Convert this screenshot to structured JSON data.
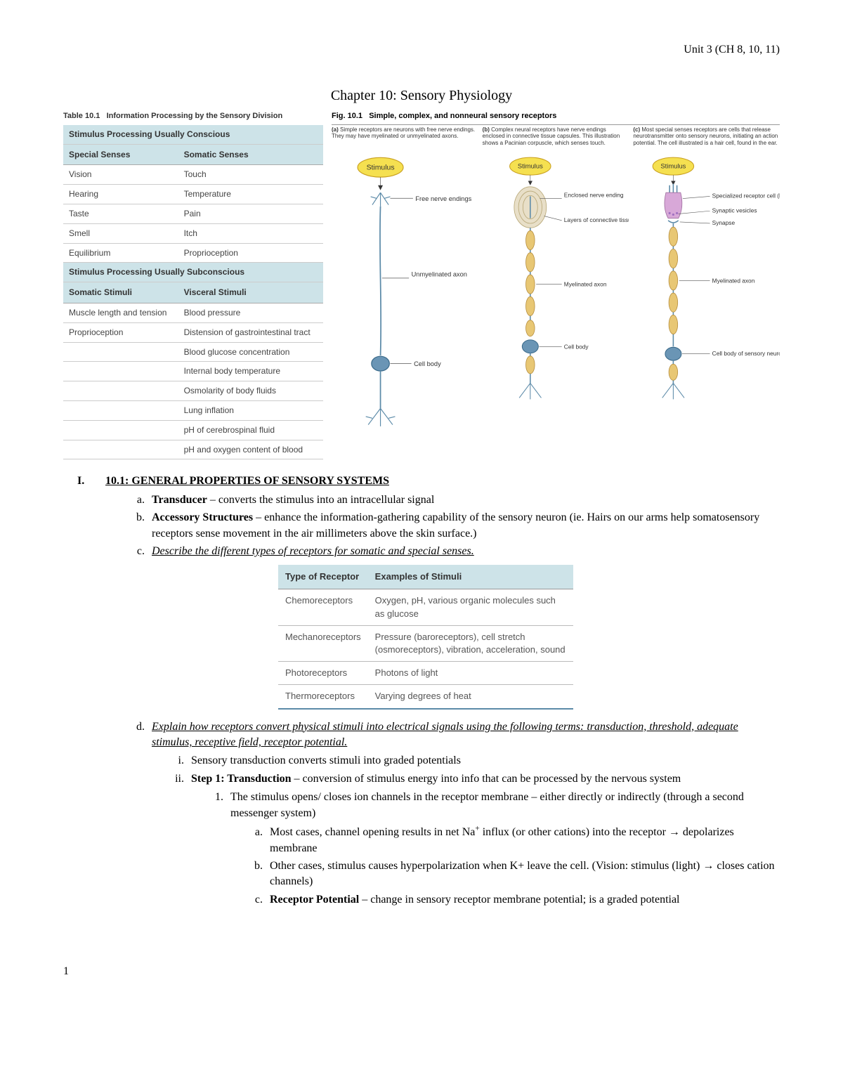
{
  "header": {
    "unit": "Unit 3 (CH 8, 10, 11)"
  },
  "chapter_title": "Chapter 10: Sensory Physiology",
  "table101": {
    "caption_num": "Table 10.1",
    "caption_text": "Information Processing by the Sensory Division",
    "section1_title": "Stimulus Processing Usually Conscious",
    "col1a": "Special Senses",
    "col1b": "Somatic Senses",
    "rows1": [
      [
        "Vision",
        "Touch"
      ],
      [
        "Hearing",
        "Temperature"
      ],
      [
        "Taste",
        "Pain"
      ],
      [
        "Smell",
        "Itch"
      ],
      [
        "Equilibrium",
        "Proprioception"
      ]
    ],
    "section2_title": "Stimulus Processing Usually Subconscious",
    "col2a": "Somatic Stimuli",
    "col2b": "Visceral Stimuli",
    "rows2": [
      [
        "Muscle length and tension",
        "Blood pressure"
      ],
      [
        "Proprioception",
        "Distension of gastrointestinal tract"
      ],
      [
        "",
        "Blood glucose concentration"
      ],
      [
        "",
        "Internal body temperature"
      ],
      [
        "",
        "Osmolarity of body fluids"
      ],
      [
        "",
        "Lung inflation"
      ],
      [
        "",
        "pH of cerebrospinal fluid"
      ],
      [
        "",
        "pH and oxygen content of blood"
      ]
    ]
  },
  "fig101": {
    "caption_num": "Fig. 10.1",
    "caption_text": "Simple, complex, and nonneural sensory receptors",
    "a_tag": "(a)",
    "a_desc": "Simple receptors are neurons with free nerve endings. They may have myelinated or unmyelinated axons.",
    "b_tag": "(b)",
    "b_desc": "Complex neural receptors have nerve endings enclosed in connective tissue capsules. This illustration shows a Pacinian corpuscle, which senses touch.",
    "c_tag": "(c)",
    "c_desc": "Most special senses receptors are cells that release neurotransmitter onto sensory neurons, initiating an action potential. The cell illustrated is a hair cell, found in the ear.",
    "labels": {
      "stimulus": "Stimulus",
      "free_nerve": "Free nerve endings",
      "unmyel": "Unmyelinated axon",
      "cellbody": "Cell body",
      "enclosed": "Enclosed nerve ending",
      "layers": "Layers of connective tissue",
      "myel": "Myelinated axon",
      "spec_cell": "Specialized receptor cell (hair cell)",
      "vesicles": "Synaptic vesicles",
      "synapse": "Synapse",
      "cellbody_sn": "Cell body of sensory neuron"
    }
  },
  "outline": {
    "I_num": "I.",
    "I_title": "10.1: GENERAL PROPERTIES OF SENSORY SYSTEMS",
    "a_lead": "Transducer",
    "a_rest": " – converts the stimulus into an intracellular signal",
    "b_lead": "Accessory Structures",
    "b_rest": " – enhance the information-gathering capability of the sensory neuron (ie. Hairs on our arms help somatosensory receptors sense movement in the air millimeters above the skin surface.)",
    "c_text": "Describe the different types of receptors for somatic and special senses.",
    "d_text": "Explain how receptors convert physical stimuli into electrical signals using the following terms: transduction, threshold, adequate stimulus, receptive field, receptor potential.",
    "d_i": "Sensory transduction converts stimuli into graded potentials",
    "d_ii_lead": "Step 1: Transduction",
    "d_ii_rest": " – conversion of stimulus energy into info that can be processed by the nervous system",
    "d_ii_1": "The stimulus opens/ closes ion channels in the receptor membrane – either directly or indirectly (through a second messenger system)",
    "d_ii_1a": "Most cases, channel opening results in net Na⁺ influx (or other cations) into the receptor → depolarizes membrane",
    "d_ii_1b": "Other cases, stimulus causes hyperpolarization when K+ leave the cell. (Vision: stimulus (light) → closes cation channels)",
    "d_ii_1c_lead": "Receptor Potential",
    "d_ii_1c_rest": " – change in sensory receptor membrane potential; is a graded potential"
  },
  "receptor_table": {
    "h1": "Type of Receptor",
    "h2": "Examples of Stimuli",
    "rows": [
      [
        "Chemoreceptors",
        "Oxygen, pH, various organic molecules such as glucose"
      ],
      [
        "Mechanoreceptors",
        "Pressure (baroreceptors), cell stretch (osmoreceptors), vibration, acceleration, sound"
      ],
      [
        "Photoreceptors",
        "Photons of light"
      ],
      [
        "Thermoreceptors",
        "Varying degrees of heat"
      ]
    ]
  },
  "page_num": "1",
  "colors": {
    "header_bg": "#cde3e8",
    "stimulus_fill": "#f5e050",
    "axon": "#5b8aa8",
    "myelin": "#e8c774",
    "cellbody": "#6a95b5"
  }
}
